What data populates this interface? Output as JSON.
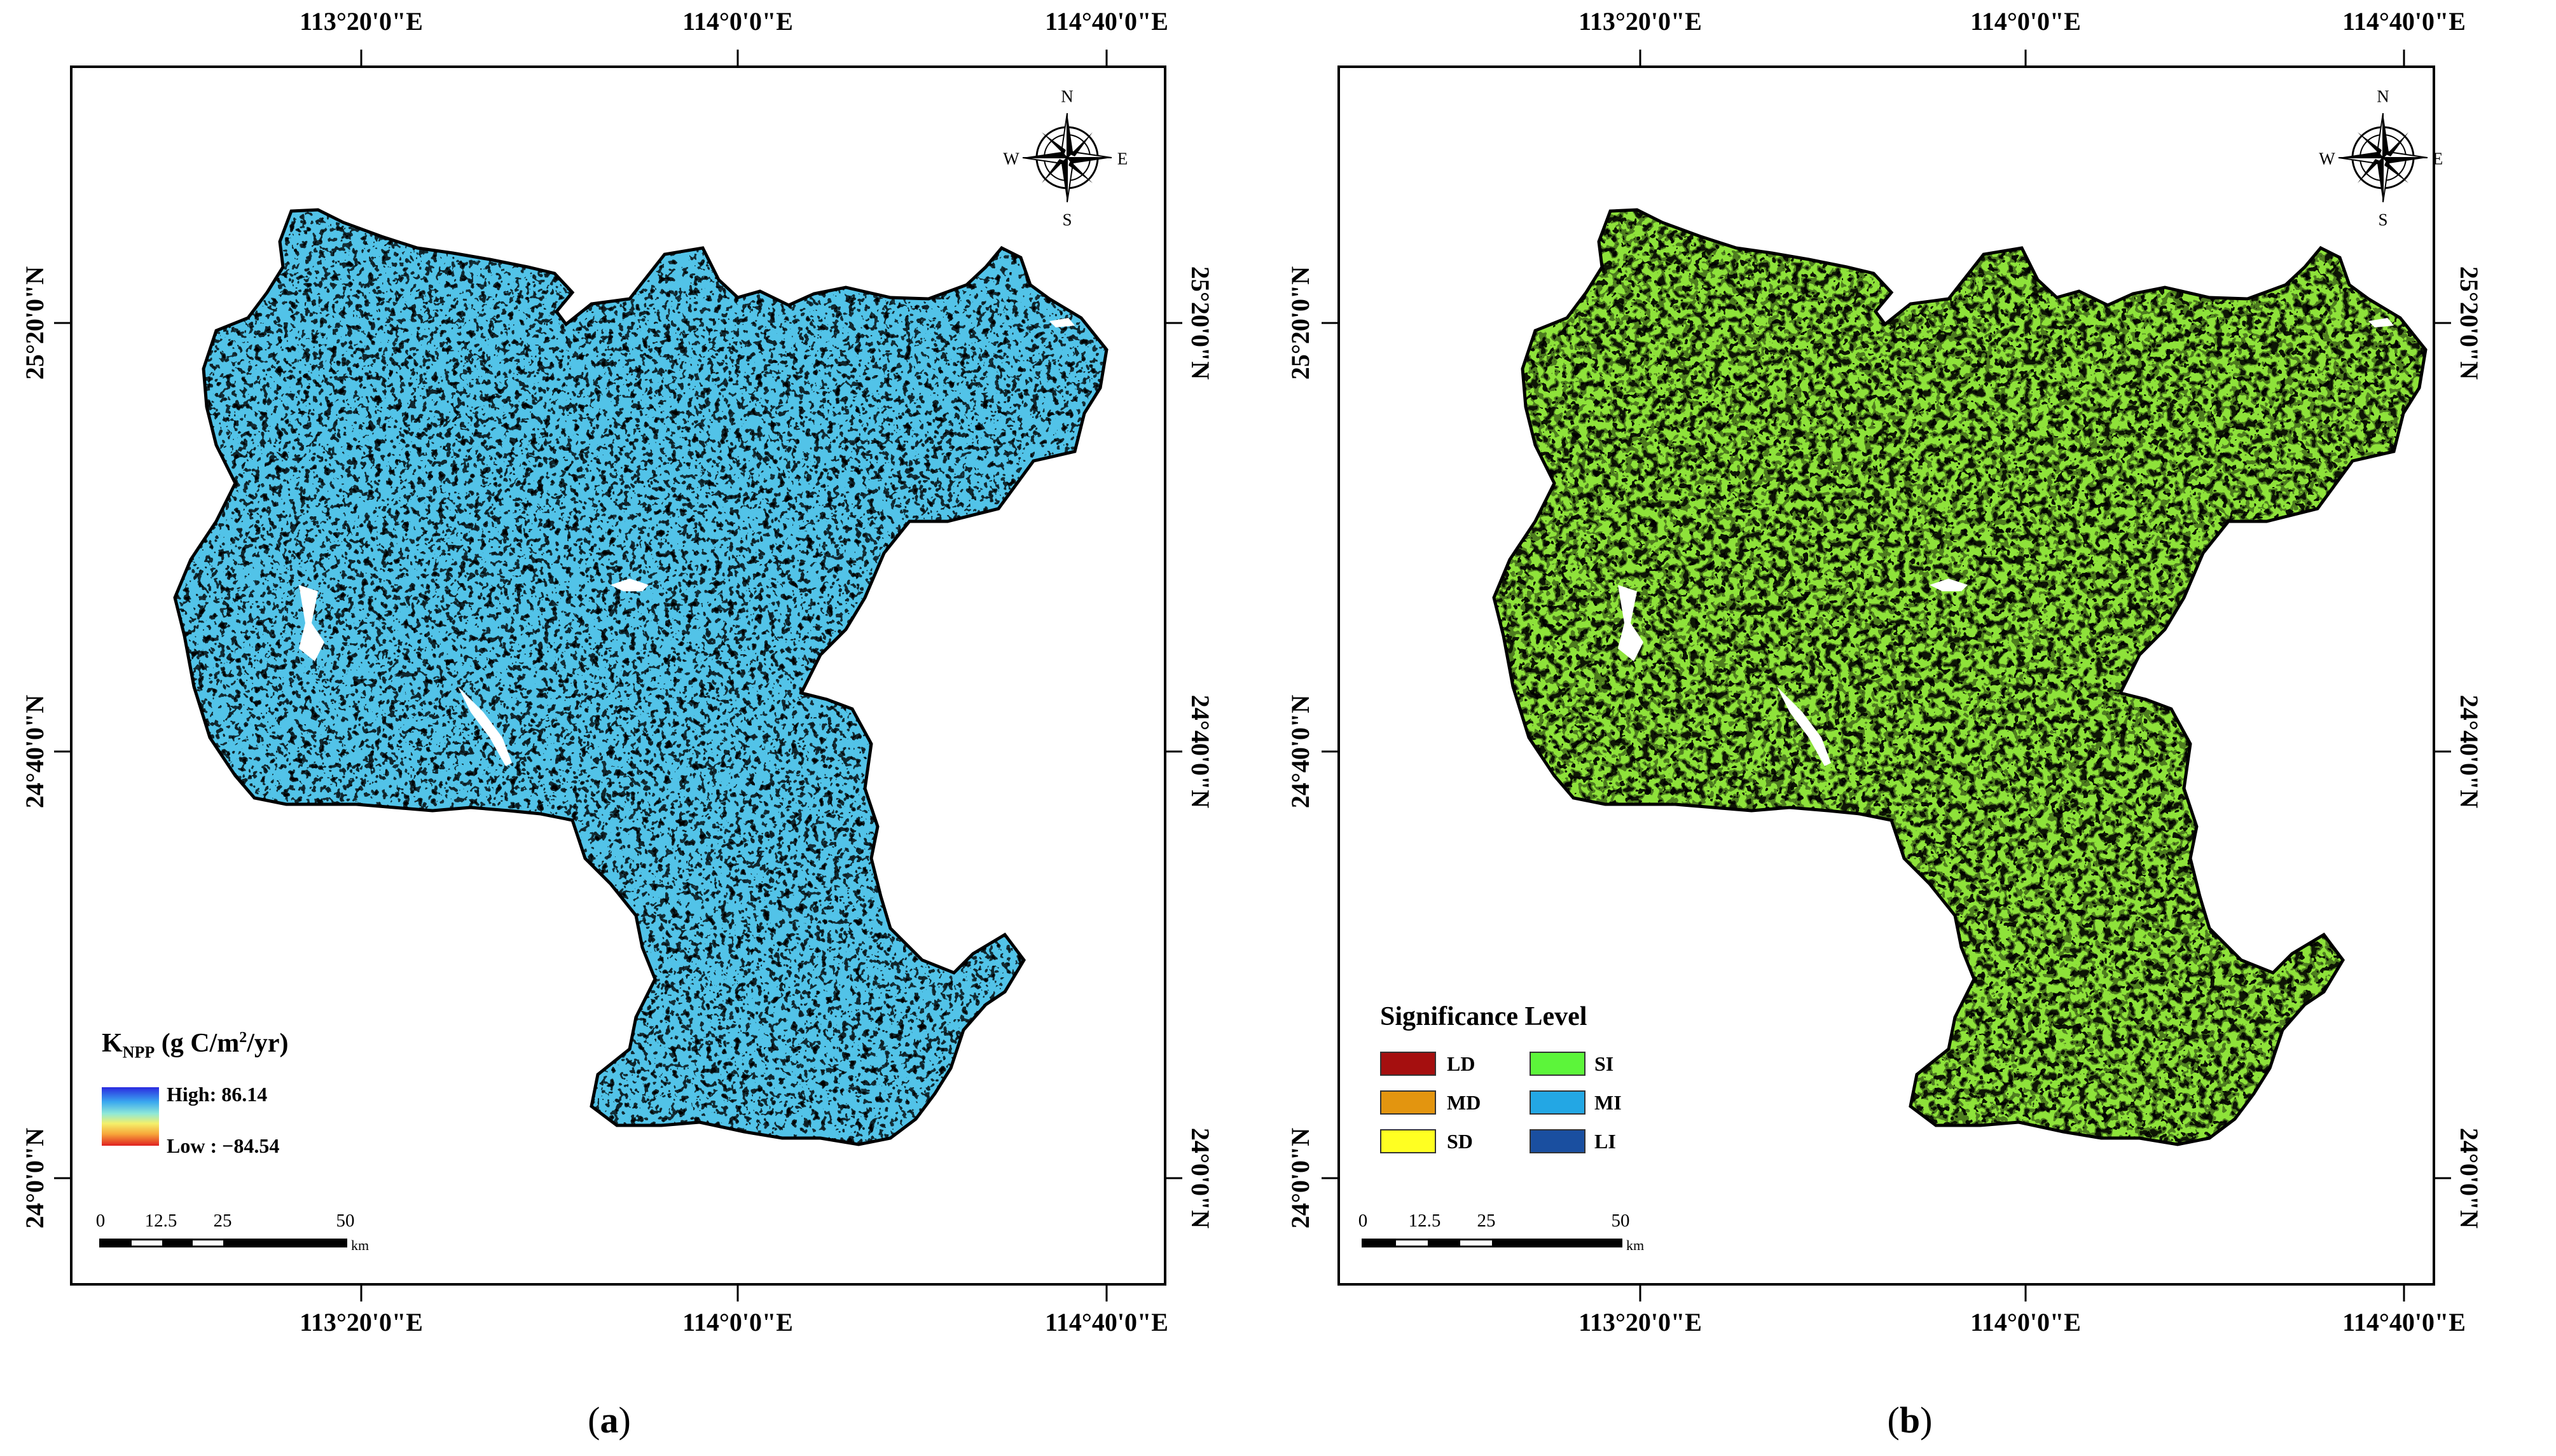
{
  "panels": [
    {
      "id": "a",
      "caption_open": "(",
      "caption_letter": "a",
      "caption_close": ")",
      "top_ticks": [
        "113°20'0\"E",
        "114°0'0\"E",
        "114°40'0\"E"
      ],
      "bottom_ticks": [
        "113°20'0\"E",
        "114°0'0\"E",
        "114°40'0\"E"
      ],
      "left_ticks": [
        "25°20'0\"N",
        "24°40'0\"N",
        "24°0'0\"N"
      ],
      "right_ticks": [
        "25°20'0\"N",
        "24°40'0\"N",
        "24°0'0\"N"
      ],
      "compass": {
        "n": "N",
        "s": "S",
        "e": "E",
        "w": "W"
      },
      "legend": {
        "title_main": "K",
        "title_sub": "NPP",
        "title_unit_prefix": " (g C/m",
        "title_unit_sup": "2",
        "title_unit_suffix": "/yr)",
        "high_label": "High: 86.14",
        "low_label": "Low : −84.54"
      },
      "scalebar": {
        "labels": [
          "0",
          "12.5",
          "25",
          "50"
        ],
        "unit": "km"
      },
      "colors": {
        "low": "#e02020",
        "mid": "#f4f06a",
        "high": "#2a2ae0",
        "base": "#52c3e8"
      }
    },
    {
      "id": "b",
      "caption_open": "(",
      "caption_letter": "b",
      "caption_close": ")",
      "top_ticks": [
        "113°20'0\"E",
        "114°0'0\"E",
        "114°40'0\"E"
      ],
      "bottom_ticks": [
        "113°20'0\"E",
        "114°0'0\"E",
        "114°40'0\"E"
      ],
      "left_ticks": [
        "25°20'0\"N",
        "24°40'0\"N",
        "24°0'0\"N"
      ],
      "right_ticks": [
        "25°20'0\"N",
        "24°40'0\"N",
        "24°0'0\"N"
      ],
      "compass": {
        "n": "N",
        "s": "S",
        "e": "E",
        "w": "W"
      },
      "legend": {
        "title": "Significance Level",
        "classes": [
          {
            "label": "LD",
            "color": "#a50f0f"
          },
          {
            "label": "MD",
            "color": "#e3950f"
          },
          {
            "label": "SD",
            "color": "#ffff22"
          },
          {
            "label": "SI",
            "color": "#5cf53a"
          },
          {
            "label": "MI",
            "color": "#23a7e4"
          },
          {
            "label": "LI",
            "color": "#1a4fa0"
          }
        ]
      },
      "scalebar": {
        "labels": [
          "0",
          "12.5",
          "25",
          "50"
        ],
        "unit": "km"
      },
      "colors": {
        "base": "#8ee23a"
      }
    }
  ]
}
